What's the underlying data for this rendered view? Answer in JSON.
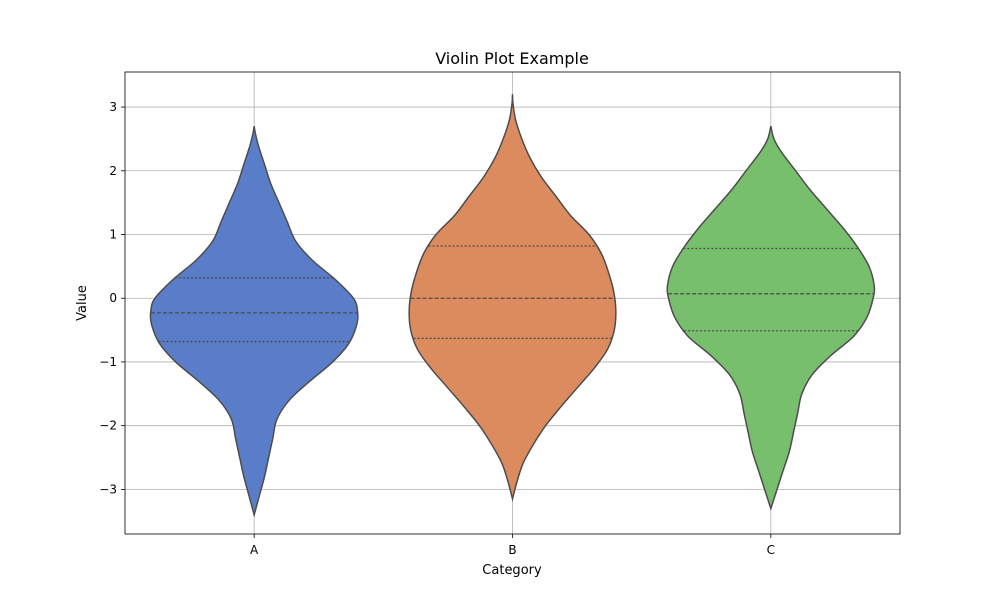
{
  "chart_data": {
    "type": "violin",
    "title": "Violin Plot Example",
    "xlabel": "Category",
    "ylabel": "Value",
    "ylim": [
      -3.7,
      3.55
    ],
    "yticks": [
      3,
      2,
      1,
      0,
      -1,
      -2,
      -3
    ],
    "ytick_labels": [
      "3",
      "2",
      "1",
      "0",
      "−1",
      "−2",
      "−3"
    ],
    "grid": true,
    "categories": [
      "A",
      "B",
      "C"
    ],
    "colors": [
      "#5a7dc9",
      "#dc8b5e",
      "#77bf6d"
    ],
    "edge_color": "#4d4d4d",
    "series": [
      {
        "category": "A",
        "min": -3.4,
        "max": 2.7,
        "q1": -0.68,
        "median": -0.23,
        "q3": 0.32,
        "density": [
          [
            -3.4,
            0.0
          ],
          [
            -3.1,
            0.05
          ],
          [
            -2.8,
            0.1
          ],
          [
            -2.5,
            0.14
          ],
          [
            -2.2,
            0.18
          ],
          [
            -1.9,
            0.22
          ],
          [
            -1.6,
            0.34
          ],
          [
            -1.3,
            0.54
          ],
          [
            -1.0,
            0.76
          ],
          [
            -0.7,
            0.92
          ],
          [
            -0.4,
            0.995
          ],
          [
            -0.2,
            1.0
          ],
          [
            0.0,
            0.96
          ],
          [
            0.3,
            0.78
          ],
          [
            0.6,
            0.56
          ],
          [
            0.9,
            0.4
          ],
          [
            1.2,
            0.32
          ],
          [
            1.5,
            0.24
          ],
          [
            1.8,
            0.16
          ],
          [
            2.1,
            0.1
          ],
          [
            2.4,
            0.04
          ],
          [
            2.6,
            0.01
          ],
          [
            2.7,
            0.0
          ]
        ]
      },
      {
        "category": "B",
        "min": -3.15,
        "max": 3.2,
        "q1": -0.63,
        "median": 0.0,
        "q3": 0.82,
        "density": [
          [
            -3.15,
            0.0
          ],
          [
            -2.9,
            0.04
          ],
          [
            -2.6,
            0.1
          ],
          [
            -2.3,
            0.2
          ],
          [
            -2.0,
            0.32
          ],
          [
            -1.7,
            0.47
          ],
          [
            -1.4,
            0.63
          ],
          [
            -1.1,
            0.79
          ],
          [
            -0.8,
            0.92
          ],
          [
            -0.5,
            0.985
          ],
          [
            -0.2,
            1.0
          ],
          [
            0.1,
            0.98
          ],
          [
            0.4,
            0.93
          ],
          [
            0.7,
            0.86
          ],
          [
            1.0,
            0.74
          ],
          [
            1.3,
            0.56
          ],
          [
            1.6,
            0.42
          ],
          [
            1.9,
            0.28
          ],
          [
            2.2,
            0.17
          ],
          [
            2.5,
            0.09
          ],
          [
            2.8,
            0.03
          ],
          [
            3.05,
            0.005
          ],
          [
            3.2,
            0.0
          ]
        ]
      },
      {
        "category": "C",
        "min": -3.3,
        "max": 2.7,
        "q1": -0.51,
        "median": 0.07,
        "q3": 0.78,
        "density": [
          [
            -3.3,
            0.0
          ],
          [
            -3.0,
            0.06
          ],
          [
            -2.7,
            0.12
          ],
          [
            -2.4,
            0.18
          ],
          [
            -2.1,
            0.22
          ],
          [
            -1.8,
            0.26
          ],
          [
            -1.5,
            0.3
          ],
          [
            -1.2,
            0.4
          ],
          [
            -0.9,
            0.58
          ],
          [
            -0.6,
            0.8
          ],
          [
            -0.3,
            0.93
          ],
          [
            0.0,
            0.99
          ],
          [
            0.2,
            1.0
          ],
          [
            0.5,
            0.95
          ],
          [
            0.8,
            0.84
          ],
          [
            1.1,
            0.7
          ],
          [
            1.4,
            0.54
          ],
          [
            1.7,
            0.38
          ],
          [
            2.0,
            0.24
          ],
          [
            2.3,
            0.1
          ],
          [
            2.5,
            0.03
          ],
          [
            2.7,
            0.0
          ]
        ]
      }
    ]
  }
}
